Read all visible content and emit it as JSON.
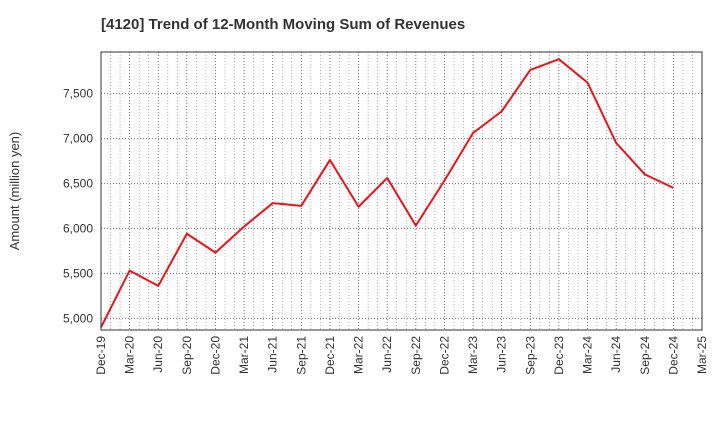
{
  "chart_data": {
    "type": "line",
    "title": "[4120]  Trend of 12-Month Moving Sum of Revenues",
    "ylabel": "Amount (million yen)",
    "xlabel": "",
    "x_tick_labels": [
      "Dec-19",
      "Mar-20",
      "Jun-20",
      "Sep-20",
      "Dec-20",
      "Mar-21",
      "Jun-21",
      "Sep-21",
      "Dec-21",
      "Mar-22",
      "Jun-22",
      "Sep-22",
      "Dec-22",
      "Mar-23",
      "Jun-23",
      "Sep-23",
      "Dec-23",
      "Mar-24",
      "Jun-24",
      "Sep-24",
      "Dec-24",
      "Mar-25"
    ],
    "y_ticks": [
      5000,
      5500,
      6000,
      6500,
      7000,
      7500
    ],
    "y_tick_labels": [
      "5,000",
      "5,500",
      "6,000",
      "6,500",
      "7,000",
      "7,500"
    ],
    "ylim": [
      4870,
      7960
    ],
    "grid": true,
    "series": [
      {
        "color": "#e8141b",
        "x": [
          "Dec-19",
          "Mar-20",
          "Jun-20",
          "Sep-20",
          "Dec-20",
          "Mar-21",
          "Jun-21",
          "Sep-21",
          "Dec-21",
          "Mar-22",
          "Jun-22",
          "Sep-22",
          "Dec-22",
          "Mar-23",
          "Jun-23",
          "Sep-23",
          "Dec-23",
          "Mar-24",
          "Jun-24",
          "Sep-24",
          "Dec-24"
        ],
        "values": [
          4900,
          5530,
          5360,
          5940,
          5730,
          6020,
          6280,
          6250,
          6760,
          6240,
          6560,
          6030,
          6530,
          7060,
          7300,
          7760,
          7880,
          7620,
          6950,
          6600,
          6450
        ]
      }
    ]
  }
}
